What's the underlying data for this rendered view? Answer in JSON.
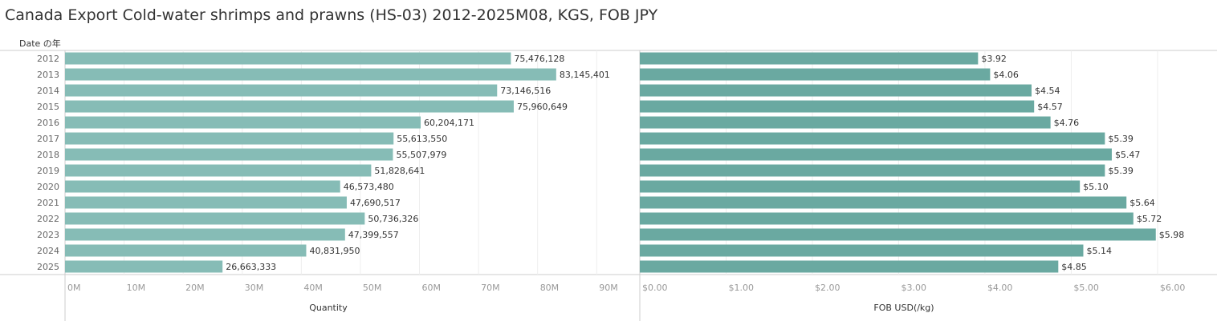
{
  "title": "Canada Export Cold-water shrimps and prawns (HS-03) 2012-2025M08, KGS, FOB JPY",
  "row_header": "Date の年",
  "colors": {
    "quantity_bar": "#86bcb6",
    "fob_bar": "#6aa9a1"
  },
  "chart_data": [
    {
      "type": "bar",
      "orientation": "horizontal",
      "categories": [
        "2012",
        "2013",
        "2014",
        "2015",
        "2016",
        "2017",
        "2018",
        "2019",
        "2020",
        "2021",
        "2022",
        "2023",
        "2024",
        "2025"
      ],
      "values": [
        75476128,
        83145401,
        73146516,
        75960649,
        60204171,
        55613550,
        55507979,
        51828641,
        46573480,
        47690517,
        50736326,
        47399557,
        40831950,
        26663333
      ],
      "data_labels": [
        "75,476,128",
        "83,145,401",
        "73,146,516",
        "75,960,649",
        "60,204,171",
        "55,613,550",
        "55,507,979",
        "51,828,641",
        "46,573,480",
        "47,690,517",
        "50,736,326",
        "47,399,557",
        "40,831,950",
        "26,663,333"
      ],
      "xlabel": "Quantity",
      "xlim": [
        0,
        97300000
      ],
      "ticks": [
        0,
        10000000,
        20000000,
        30000000,
        40000000,
        50000000,
        60000000,
        70000000,
        80000000,
        90000000
      ],
      "tick_labels": [
        "0M",
        "10M",
        "20M",
        "30M",
        "40M",
        "50M",
        "60M",
        "70M",
        "80M",
        "90M"
      ],
      "grid": true
    },
    {
      "type": "bar",
      "orientation": "horizontal",
      "categories": [
        "2012",
        "2013",
        "2014",
        "2015",
        "2016",
        "2017",
        "2018",
        "2019",
        "2020",
        "2021",
        "2022",
        "2023",
        "2024",
        "2025"
      ],
      "values": [
        3.92,
        4.06,
        4.54,
        4.57,
        4.76,
        5.39,
        5.47,
        5.39,
        5.1,
        5.64,
        5.72,
        5.98,
        5.14,
        4.85
      ],
      "data_labels": [
        "$3.92",
        "$4.06",
        "$4.54",
        "$4.57",
        "$4.76",
        "$5.39",
        "$5.47",
        "$5.39",
        "$5.10",
        "$5.64",
        "$5.72",
        "$5.98",
        "$5.14",
        "$4.85"
      ],
      "xlabel": "FOB USD(/kg)",
      "xlim": [
        0,
        6.68
      ],
      "ticks": [
        0,
        1,
        2,
        3,
        4,
        5,
        6
      ],
      "tick_labels": [
        "$0.00",
        "$1.00",
        "$2.00",
        "$3.00",
        "$4.00",
        "$5.00",
        "$6.00"
      ],
      "grid": true
    }
  ]
}
